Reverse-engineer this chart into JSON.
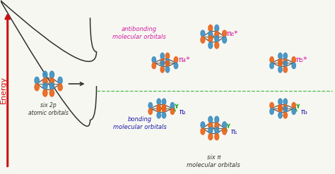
{
  "bg_color": "#f7f7f2",
  "orange": "#e8641a",
  "blue": "#3e8fc0",
  "magenta": "#d020a0",
  "dark_blue": "#1a1aaa",
  "green": "#22aa22",
  "red": "#cc1010",
  "dark": "#303030",
  "gray_frame": "#555555",
  "energy_label": "Energy",
  "six2p_label": "six 2p\natomic orbitals",
  "antibonding_label": "antibonding\nmolecular orbitals",
  "bonding_label": "bonding\nmolecular orbitals",
  "bottom_label": "six π\nmolecular orbitals",
  "pi4_label": "π₄*",
  "pi5_label": "π₅*",
  "pi6_label": "π₆*",
  "pi1_label": "π₁",
  "pi2_label": "π₂",
  "pi3_label": "π₃"
}
